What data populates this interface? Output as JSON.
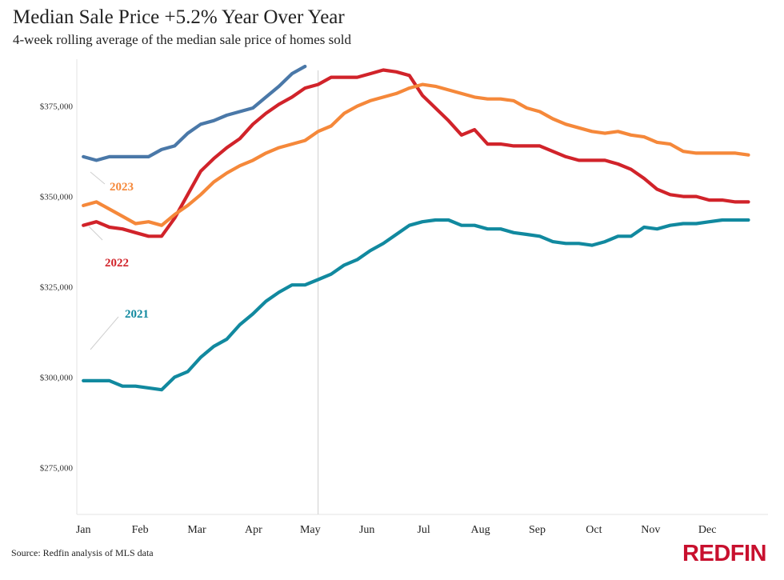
{
  "chart_data": {
    "type": "line",
    "title": "Median Sale Price +5.2% Year Over Year",
    "subtitle": "4-week rolling average of the median sale price of homes sold",
    "source": "Source: Redfin analysis of MLS data",
    "brand": "REDFIN",
    "xlabel": "",
    "ylabel": "",
    "ylim": [
      262000,
      388000
    ],
    "yticks": [
      275000,
      300000,
      325000,
      350000,
      375000
    ],
    "ytick_labels": [
      "$275,000",
      "$300,000",
      "$325,000",
      "$350,000",
      "$375,000"
    ],
    "months": [
      "Jan",
      "Feb",
      "Mar",
      "Apr",
      "May",
      "Jun",
      "Jul",
      "Aug",
      "Sep",
      "Oct",
      "Nov",
      "Dec"
    ],
    "x_unit": "week of year",
    "xlim": [
      0.5,
      53.5
    ],
    "current_week_marker": 19,
    "grid": false,
    "colors": {
      "2023_current": "#4a78a8",
      "2023": "#f5883a",
      "2022": "#d1232a",
      "2021": "#11899f",
      "brand": "#c8102e"
    },
    "series": [
      {
        "name": "2021",
        "color": "#11899f",
        "x": [
          1,
          2,
          3,
          4,
          5,
          6,
          7,
          8,
          9,
          10,
          11,
          12,
          13,
          14,
          15,
          16,
          17,
          18,
          19,
          20,
          21,
          22,
          23,
          24,
          25,
          26,
          27,
          28,
          29,
          30,
          31,
          32,
          33,
          34,
          35,
          36,
          37,
          38,
          39,
          40,
          41,
          42,
          43,
          44,
          45,
          46,
          47,
          48,
          49,
          50,
          51,
          52
        ],
        "values": [
          299000,
          299000,
          299000,
          297500,
          297500,
          297000,
          296500,
          300000,
          301500,
          305500,
          308500,
          310500,
          314500,
          317500,
          321000,
          323500,
          325500,
          325500,
          327000,
          328500,
          331000,
          332500,
          335000,
          337000,
          339500,
          342000,
          343000,
          343500,
          343500,
          342000,
          342000,
          341000,
          341000,
          340000,
          339500,
          339000,
          337500,
          337000,
          337000,
          336500,
          337500,
          339000,
          339000,
          341500,
          341000,
          342000,
          342500,
          342500,
          343000,
          343500,
          343500,
          343500
        ]
      },
      {
        "name": "2022",
        "color": "#d1232a",
        "x": [
          1,
          2,
          3,
          4,
          5,
          6,
          7,
          8,
          9,
          10,
          11,
          12,
          13,
          14,
          15,
          16,
          17,
          18,
          19,
          20,
          21,
          22,
          23,
          24,
          25,
          26,
          27,
          28,
          29,
          30,
          31,
          32,
          33,
          34,
          35,
          36,
          37,
          38,
          39,
          40,
          41,
          42,
          43,
          44,
          45,
          46,
          47,
          48,
          49,
          50,
          51,
          52
        ],
        "values": [
          342000,
          343000,
          341500,
          341000,
          340000,
          339000,
          339000,
          344000,
          350500,
          357000,
          360500,
          363500,
          366000,
          370000,
          373000,
          375500,
          377500,
          380000,
          381000,
          383000,
          383000,
          383000,
          384000,
          385000,
          384500,
          383500,
          378000,
          374500,
          371000,
          367000,
          368500,
          364500,
          364500,
          364000,
          364000,
          364000,
          362500,
          361000,
          360000,
          360000,
          360000,
          359000,
          357500,
          355000,
          352000,
          350500,
          350000,
          350000,
          349000,
          349000,
          348500,
          348500
        ]
      },
      {
        "name": "2023",
        "color": "#f5883a",
        "x": [
          1,
          2,
          3,
          4,
          5,
          6,
          7,
          8,
          9,
          10,
          11,
          12,
          13,
          14,
          15,
          16,
          17,
          18,
          19,
          20,
          21,
          22,
          23,
          24,
          25,
          26,
          27,
          28,
          29,
          30,
          31,
          32,
          33,
          34,
          35,
          36,
          37,
          38,
          39,
          40,
          41,
          42,
          43,
          44,
          45,
          46,
          47,
          48,
          49,
          50,
          51,
          52
        ],
        "values": [
          347500,
          348500,
          346500,
          344500,
          342500,
          343000,
          342000,
          345000,
          347500,
          350500,
          354000,
          356500,
          358500,
          360000,
          362000,
          363500,
          364500,
          365500,
          368000,
          369500,
          373000,
          375000,
          376500,
          377500,
          378500,
          380000,
          381000,
          380500,
          379500,
          378500,
          377500,
          377000,
          377000,
          376500,
          374500,
          373500,
          371500,
          370000,
          369000,
          368000,
          367500,
          368000,
          367000,
          366500,
          365000,
          364500,
          362500,
          362000,
          362000,
          362000,
          362000,
          361500
        ]
      },
      {
        "name": "2023 current",
        "color": "#4a78a8",
        "x": [
          1,
          2,
          3,
          4,
          5,
          6,
          7,
          8,
          9,
          10,
          11,
          12,
          13,
          14,
          15,
          16,
          17,
          18
        ],
        "values": [
          361000,
          360000,
          361000,
          361000,
          361000,
          361000,
          363000,
          364000,
          367500,
          370000,
          371000,
          372500,
          373500,
          374500,
          377500,
          380500,
          384000,
          386000
        ]
      }
    ]
  }
}
